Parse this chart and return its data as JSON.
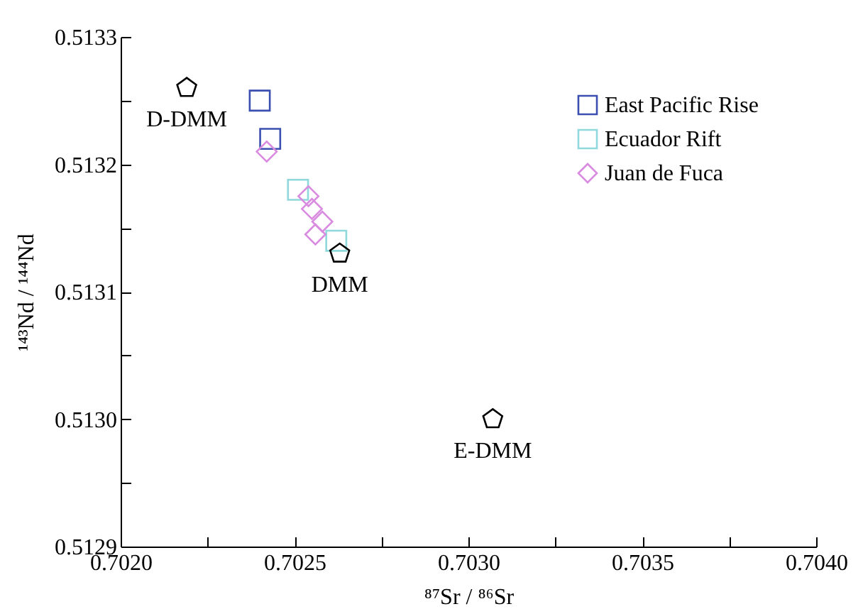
{
  "chart_data": {
    "type": "scatter",
    "xlabel": "⁸⁷Sr / ⁸⁶Sr",
    "ylabel": "¹⁴³Nd / ¹⁴⁴Nd",
    "xlim": [
      0.702,
      0.704
    ],
    "ylim": [
      0.5129,
      0.5133
    ],
    "xticks": [
      {
        "value": 0.702,
        "label": "0.7020"
      },
      {
        "value": 0.70225,
        "label": null
      },
      {
        "value": 0.7025,
        "label": "0.7025"
      },
      {
        "value": 0.70275,
        "label": null
      },
      {
        "value": 0.703,
        "label": "0.7030"
      },
      {
        "value": 0.70325,
        "label": null
      },
      {
        "value": 0.7035,
        "label": "0.7035"
      },
      {
        "value": 0.70375,
        "label": null
      },
      {
        "value": 0.704,
        "label": "0.7040"
      }
    ],
    "yticks": [
      {
        "value": 0.5129,
        "label": "0.5129"
      },
      {
        "value": 0.51295,
        "label": null
      },
      {
        "value": 0.513,
        "label": "0.5130"
      },
      {
        "value": 0.51305,
        "label": null
      },
      {
        "value": 0.5131,
        "label": "0.5131"
      },
      {
        "value": 0.51315,
        "label": null
      },
      {
        "value": 0.5132,
        "label": "0.5132"
      },
      {
        "value": 0.51325,
        "label": null
      },
      {
        "value": 0.5133,
        "label": "0.5133"
      }
    ],
    "grid": false,
    "legend": "top right",
    "series": [
      {
        "name": "East Pacific Rise",
        "color": "#3a4fb0",
        "marker": "square",
        "x": [
          0.7024,
          0.70243
        ],
        "values": [
          0.51325,
          0.51322
        ]
      },
      {
        "name": "Ecuador Rift",
        "color": "#8fd9dc",
        "marker": "square",
        "x": [
          0.70251,
          0.70262
        ],
        "values": [
          0.51318,
          0.51314
        ]
      },
      {
        "name": "Juan de Fuca",
        "color": "#d98be0",
        "marker": "diamond",
        "x": [
          0.70242,
          0.70254,
          0.70255,
          0.70258,
          0.70256
        ],
        "values": [
          0.51321,
          0.513175,
          0.513165,
          0.513155,
          0.513145
        ]
      },
      {
        "color": "#000000",
        "x": [
          0.70219,
          0.70263,
          0.70307
        ],
        "values": [
          0.51326,
          0.51313,
          0.513
        ]
      }
    ],
    "annotations": [
      {
        "text": "D-DMM",
        "x": 0.70219,
        "y": 0.51326
      },
      {
        "text": "DMM",
        "x": 0.70263,
        "y": 0.51313
      },
      {
        "text": "E-DMM",
        "x": 0.70307,
        "y": 0.513
      }
    ]
  }
}
